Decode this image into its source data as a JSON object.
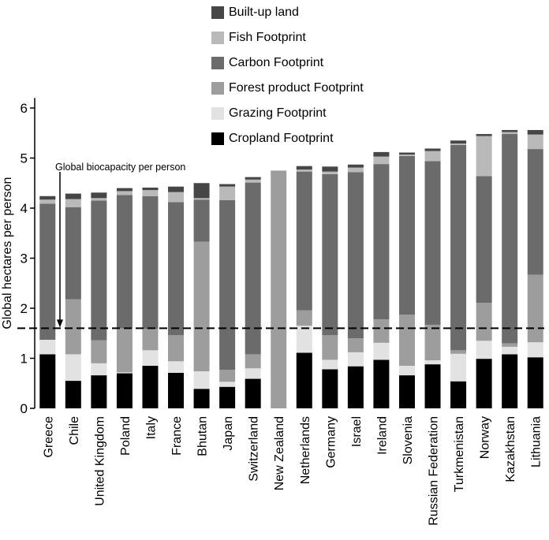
{
  "chart_data": {
    "type": "bar",
    "stacked": true,
    "ylabel": "Global hectares per person",
    "ylim": [
      0,
      6.2
    ],
    "yticks": [
      0,
      1,
      2,
      3,
      4,
      5,
      6
    ],
    "reference_line": {
      "value": 1.6,
      "label": "Global biocapacity per person",
      "style": "dashed"
    },
    "categories": [
      "Greece",
      "Chile",
      "United Kingdom",
      "Poland",
      "Italy",
      "France",
      "Bhutan",
      "Japan",
      "Switzerland",
      "New Zealand",
      "Netherlands",
      "Germany",
      "Israel",
      "Ireland",
      "Slovenia",
      "Russian Federation",
      "Turkmenistan",
      "Norway",
      "Kazakhstan",
      "Lithuania"
    ],
    "series": [
      {
        "name": "Cropland Footprint",
        "color": "#000000",
        "values": [
          1.08,
          0.55,
          0.66,
          0.7,
          0.85,
          0.71,
          0.39,
          0.43,
          0.59,
          0.0,
          1.11,
          0.78,
          0.84,
          0.97,
          0.66,
          0.88,
          0.54,
          0.99,
          1.08,
          1.02
        ]
      },
      {
        "name": "Grazing Footprint",
        "color": "#e2e2e2",
        "values": [
          0.29,
          0.53,
          0.24,
          0.02,
          0.31,
          0.23,
          0.35,
          0.1,
          0.21,
          0.0,
          0.54,
          0.19,
          0.28,
          0.34,
          0.19,
          0.08,
          0.55,
          0.36,
          0.15,
          0.3
        ]
      },
      {
        "name": "Forest product Footprint",
        "color": "#9d9d9d",
        "values": [
          0.0,
          1.1,
          0.46,
          0.88,
          0.43,
          0.52,
          2.59,
          0.24,
          0.28,
          4.75,
          0.31,
          0.49,
          0.28,
          0.47,
          1.02,
          0.71,
          0.07,
          0.76,
          0.07,
          1.35
        ]
      },
      {
        "name": "Carbon Footprint",
        "color": "#6b6b6b",
        "values": [
          2.72,
          1.84,
          2.79,
          2.66,
          2.65,
          2.66,
          0.84,
          3.39,
          3.43,
          0.0,
          2.77,
          3.22,
          3.32,
          3.1,
          3.17,
          3.27,
          4.1,
          2.53,
          4.18,
          2.51
        ]
      },
      {
        "name": "Fish Footprint",
        "color": "#b9b9b9",
        "values": [
          0.08,
          0.16,
          0.05,
          0.08,
          0.12,
          0.2,
          0.03,
          0.27,
          0.06,
          0.0,
          0.04,
          0.05,
          0.09,
          0.15,
          0.03,
          0.2,
          0.03,
          0.8,
          0.04,
          0.29
        ]
      },
      {
        "name": "Built-up land",
        "color": "#464646",
        "values": [
          0.07,
          0.11,
          0.11,
          0.06,
          0.05,
          0.11,
          0.3,
          0.05,
          0.05,
          0.0,
          0.07,
          0.1,
          0.06,
          0.09,
          0.04,
          0.05,
          0.06,
          0.04,
          0.04,
          0.09
        ]
      }
    ]
  }
}
